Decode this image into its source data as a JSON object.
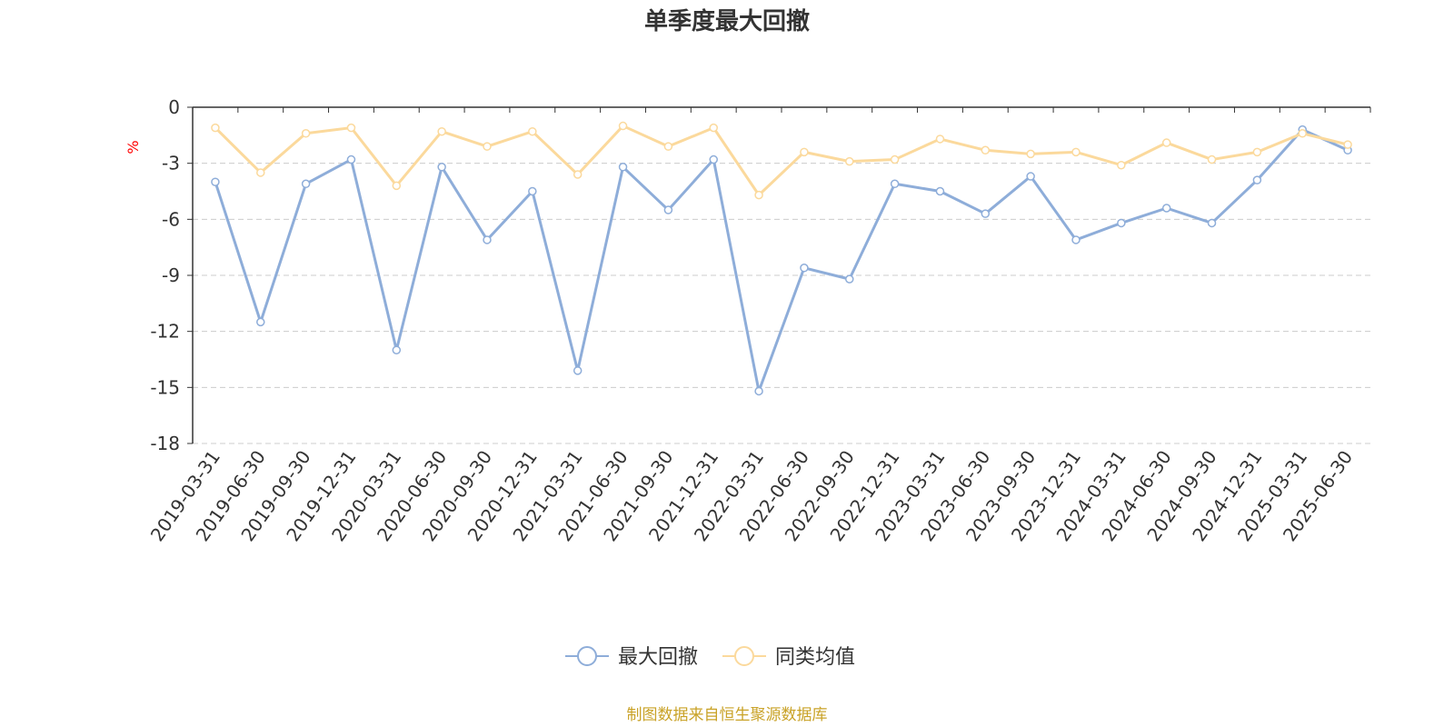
{
  "chart_data": {
    "type": "line",
    "title": "单季度最大回撤",
    "ylabel": "%",
    "xlabel": "",
    "ylim": [
      -18,
      0
    ],
    "yticks": [
      0,
      -3,
      -6,
      -9,
      -12,
      -15,
      -18
    ],
    "grid": true,
    "legend_position": "bottom-center",
    "categories": [
      "2019-03-31",
      "2019-06-30",
      "2019-09-30",
      "2019-12-31",
      "2020-03-31",
      "2020-06-30",
      "2020-09-30",
      "2020-12-31",
      "2021-03-31",
      "2021-06-30",
      "2021-09-30",
      "2021-12-31",
      "2022-03-31",
      "2022-06-30",
      "2022-09-30",
      "2022-12-31",
      "2023-03-31",
      "2023-06-30",
      "2023-09-30",
      "2023-12-31",
      "2024-03-31",
      "2024-06-30",
      "2024-09-30",
      "2024-12-31",
      "2025-03-31",
      "2025-06-30"
    ],
    "series": [
      {
        "name": "最大回撤",
        "color": "#8eadd9",
        "values": [
          -4.0,
          -11.5,
          -4.1,
          -2.8,
          -13.0,
          -3.2,
          -7.1,
          -4.5,
          -14.1,
          -3.2,
          -5.5,
          -2.8,
          -15.2,
          -8.6,
          -9.2,
          -4.1,
          -4.5,
          -5.7,
          -3.7,
          -7.1,
          -6.2,
          -5.4,
          -6.2,
          -3.9,
          -1.2,
          -2.3
        ]
      },
      {
        "name": "同类均值",
        "color": "#fbd99c",
        "values": [
          -1.1,
          -3.5,
          -1.4,
          -1.1,
          -4.2,
          -1.3,
          -2.1,
          -1.3,
          -3.6,
          -1.0,
          -2.1,
          -1.1,
          -4.7,
          -2.4,
          -2.9,
          -2.8,
          -1.7,
          -2.3,
          -2.5,
          -2.4,
          -3.1,
          -1.9,
          -2.8,
          -2.4,
          -1.4,
          -2.0
        ]
      }
    ]
  },
  "source_note": "制图数据来自恒生聚源数据库",
  "colors": {
    "axis": "#333333",
    "grid": "#cccccc",
    "unit_label": "#ff0000",
    "source_note": "#c9a227"
  }
}
